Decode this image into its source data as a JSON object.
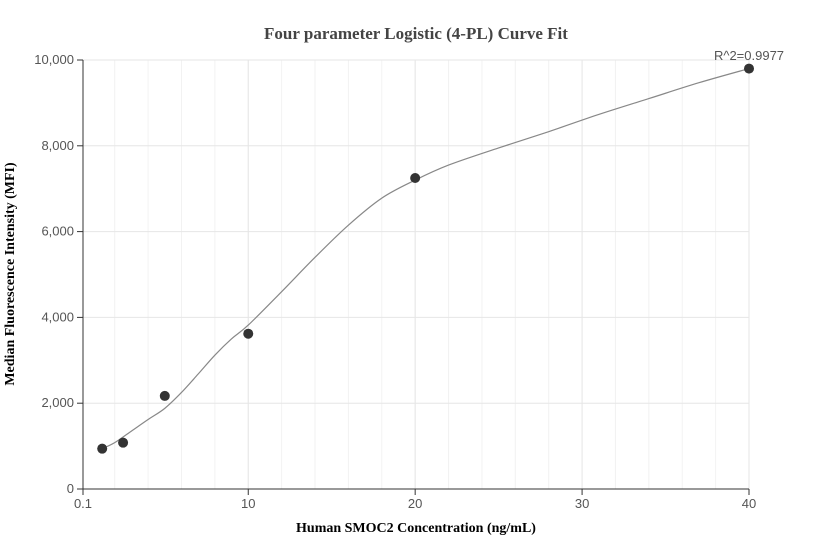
{
  "chart_data": {
    "type": "scatter",
    "title": "Four parameter Logistic (4-PL) Curve Fit",
    "xlabel": "Human SMOC2 Concentration (ng/mL)",
    "ylabel": "Median Fluorescence Intensity (MFI)",
    "annotation": "R^2=0.9977",
    "xlim": [
      0.1,
      40
    ],
    "ylim": [
      0,
      10000
    ],
    "x_ticks": [
      {
        "value": 0.1,
        "label": "0.1"
      },
      {
        "value": 10,
        "label": "10"
      },
      {
        "value": 20,
        "label": "20"
      },
      {
        "value": 30,
        "label": "30"
      },
      {
        "value": 40,
        "label": "40"
      }
    ],
    "y_ticks": [
      {
        "value": 0,
        "label": "0"
      },
      {
        "value": 2000,
        "label": "2,000"
      },
      {
        "value": 4000,
        "label": "4,000"
      },
      {
        "value": 6000,
        "label": "6,000"
      },
      {
        "value": 8000,
        "label": "8,000"
      },
      {
        "value": 10000,
        "label": "10,000"
      }
    ],
    "grid": true,
    "points": [
      {
        "x": 1.25,
        "y": 940
      },
      {
        "x": 2.5,
        "y": 1080
      },
      {
        "x": 5,
        "y": 2170
      },
      {
        "x": 10,
        "y": 3620
      },
      {
        "x": 20,
        "y": 7250
      },
      {
        "x": 40,
        "y": 9800
      }
    ],
    "fit_curve": {
      "x": [
        1.25,
        2,
        3,
        4,
        5,
        6,
        7,
        8,
        9,
        10,
        12,
        14,
        16,
        18,
        20,
        22,
        25,
        28,
        31,
        34,
        37,
        40
      ],
      "y": [
        940,
        1080,
        1350,
        1620,
        1880,
        2250,
        2680,
        3120,
        3500,
        3820,
        4600,
        5400,
        6150,
        6780,
        7200,
        7550,
        7950,
        8330,
        8730,
        9100,
        9470,
        9800
      ]
    },
    "colors": {
      "point": "#333333",
      "curve": "#888888",
      "grid": "#e6e6e6"
    }
  }
}
